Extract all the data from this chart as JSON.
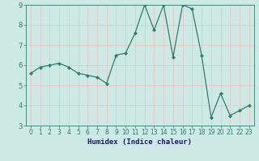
{
  "x": [
    0,
    1,
    2,
    3,
    4,
    5,
    6,
    7,
    8,
    9,
    10,
    11,
    12,
    13,
    14,
    15,
    16,
    17,
    18,
    19,
    20,
    21,
    22,
    23
  ],
  "y": [
    5.6,
    5.9,
    6.0,
    6.1,
    5.9,
    5.6,
    5.5,
    5.4,
    5.1,
    6.5,
    6.6,
    7.6,
    9.0,
    7.75,
    9.0,
    6.4,
    9.0,
    8.8,
    6.5,
    3.4,
    4.6,
    3.5,
    3.75,
    4.0
  ],
  "xlabel": "Humidex (Indice chaleur)",
  "ylim": [
    3,
    9
  ],
  "xlim": [
    -0.5,
    23.5
  ],
  "yticks": [
    3,
    4,
    5,
    6,
    7,
    8,
    9
  ],
  "xticks": [
    0,
    1,
    2,
    3,
    4,
    5,
    6,
    7,
    8,
    9,
    10,
    11,
    12,
    13,
    14,
    15,
    16,
    17,
    18,
    19,
    20,
    21,
    22,
    23
  ],
  "line_color": "#2e7d6e",
  "marker_color": "#2e7d6e",
  "bg_color": "#cce9e4",
  "grid_color": "#e8c8c8",
  "axes_bg": "#cce9e4",
  "xlabel_color": "#1a1a6e",
  "tick_fontsize": 5.5,
  "xlabel_fontsize": 6.5
}
